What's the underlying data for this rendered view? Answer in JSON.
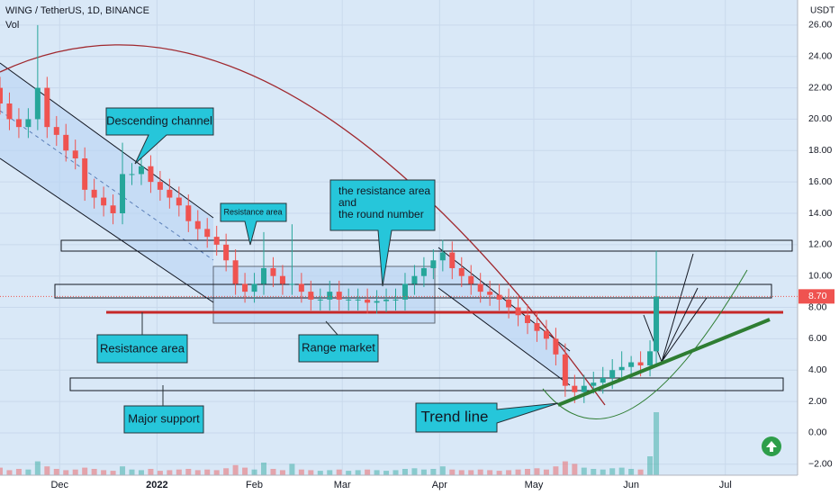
{
  "chart_data": {
    "type": "candlestick",
    "header": "WING / TetherUS, 1D, BINANCE",
    "volume_label": "Vol",
    "currency": "USDT",
    "last_price": 8.7,
    "last_price_label": "8.70",
    "up_color": "#26a69a",
    "down_color": "#ef5350",
    "xlim": [
      0,
      254
    ],
    "xticks": [
      {
        "value": 19,
        "label": "Dec"
      },
      {
        "value": 50,
        "label": "2022"
      },
      {
        "value": 81,
        "label": "Feb"
      },
      {
        "value": 109,
        "label": "Mar"
      },
      {
        "value": 140,
        "label": "Apr"
      },
      {
        "value": 170,
        "label": "May"
      },
      {
        "value": 201,
        "label": "Jun"
      },
      {
        "value": 231,
        "label": "Jul"
      }
    ],
    "ylim": [
      -2.7,
      27.6
    ],
    "yticks": [
      {
        "value": 26,
        "label": "26.00"
      },
      {
        "value": 24,
        "label": "24.00"
      },
      {
        "value": 22,
        "label": "22.00"
      },
      {
        "value": 20,
        "label": "20.00"
      },
      {
        "value": 18,
        "label": "18.00"
      },
      {
        "value": 16,
        "label": "16.00"
      },
      {
        "value": 14,
        "label": "14.00"
      },
      {
        "value": 12,
        "label": "12.00"
      },
      {
        "value": 10,
        "label": "10.00"
      },
      {
        "value": 8,
        "label": "8.00"
      },
      {
        "value": 6,
        "label": "6.00"
      },
      {
        "value": 4,
        "label": "4.00"
      },
      {
        "value": 2,
        "label": "2.00"
      },
      {
        "value": 0,
        "label": "0.00"
      },
      {
        "value": -2,
        "label": "−2.00"
      }
    ],
    "x": [
      0,
      3,
      6,
      9,
      12,
      15,
      18,
      21,
      24,
      27,
      30,
      33,
      36,
      39,
      42,
      45,
      48,
      51,
      54,
      57,
      60,
      63,
      66,
      69,
      72,
      75,
      78,
      81,
      84,
      87,
      90,
      93,
      96,
      99,
      102,
      105,
      108,
      111,
      114,
      117,
      120,
      123,
      126,
      129,
      132,
      135,
      138,
      141,
      144,
      147,
      150,
      153,
      156,
      159,
      162,
      165,
      168,
      171,
      174,
      177,
      180,
      183,
      186,
      189,
      192,
      195,
      198,
      201,
      204,
      207,
      209
    ],
    "open": [
      22,
      21,
      20,
      19.5,
      20,
      22,
      19.5,
      19,
      18,
      17.5,
      15.5,
      15,
      14.5,
      14,
      16.5,
      16.5,
      17,
      16,
      15.5,
      15,
      14.5,
      13.5,
      13,
      12.5,
      12,
      11,
      9.5,
      9,
      9.5,
      10.5,
      10,
      9.5,
      9.5,
      9,
      8.5,
      8.5,
      9,
      8.5,
      8.5,
      8.5,
      8.3,
      8.4,
      8.5,
      8.5,
      9.5,
      10,
      10.5,
      11,
      11.5,
      10.5,
      10,
      9.5,
      9,
      8.8,
      8.5,
      8,
      7.5,
      7,
      6.5,
      6,
      5,
      3,
      2.6,
      3,
      3.2,
      3.5,
      4,
      4.2,
      4.5,
      4.3,
      5.2
    ],
    "high": [
      22.7,
      21.7,
      20.7,
      20.7,
      26,
      22.7,
      20.2,
      19.7,
      18.7,
      18.2,
      16.2,
      15.7,
      15.2,
      18.5,
      17.2,
      17.7,
      17.7,
      16.7,
      16.2,
      15.7,
      15.2,
      14.2,
      13.7,
      13.2,
      12.7,
      11.7,
      10.2,
      10.2,
      12.8,
      11.2,
      10.7,
      13.3,
      10.2,
      9.7,
      9.2,
      9.7,
      9.7,
      9.2,
      9.2,
      9.2,
      9.1,
      9.2,
      9.2,
      10.2,
      10.7,
      11.2,
      11.7,
      12.3,
      12.2,
      11.2,
      10.7,
      10.2,
      9.7,
      9.5,
      9.2,
      8.7,
      8.2,
      7.7,
      7.2,
      6.7,
      5.7,
      3.7,
      3.7,
      3.9,
      4.2,
      4.7,
      5.2,
      4.9,
      5.2,
      5.9,
      11.6
    ],
    "low": [
      20.3,
      19.3,
      18.8,
      18.8,
      19.3,
      18.8,
      18.3,
      17.3,
      16.8,
      14.8,
      14.3,
      13.8,
      13.3,
      13.3,
      15.8,
      15.8,
      15.3,
      14.8,
      14.3,
      13.8,
      12.8,
      12.3,
      11.8,
      11.3,
      10.3,
      8.8,
      8.3,
      8.3,
      8.8,
      9.3,
      8.8,
      8.8,
      8.3,
      7.8,
      7.8,
      7.8,
      7.8,
      7.8,
      7.8,
      7.6,
      7.6,
      7.7,
      7.8,
      7.8,
      8.8,
      9.3,
      9.8,
      10.3,
      9.8,
      9.3,
      8.8,
      8.3,
      8.1,
      7.8,
      7.3,
      6.8,
      6.3,
      5.8,
      5.3,
      4.3,
      2.3,
      1.9,
      1.9,
      2.5,
      2.5,
      2.8,
      3.3,
      3.5,
      3.6,
      3.6,
      4.3
    ],
    "close": [
      21,
      20,
      19.5,
      20,
      22,
      19.5,
      19,
      18,
      17.5,
      15.5,
      15,
      14.5,
      14,
      16.5,
      16.5,
      17,
      16,
      15.5,
      15,
      14.5,
      13.5,
      13,
      12.5,
      12,
      11,
      9.5,
      9,
      9.5,
      10.5,
      10,
      9.5,
      9.5,
      9,
      8.5,
      8.5,
      9,
      8.5,
      8.5,
      8.5,
      8.3,
      8.4,
      8.5,
      8.5,
      9.5,
      10,
      10.5,
      11,
      11.5,
      10.5,
      10,
      9.5,
      9,
      8.8,
      8.5,
      8,
      7.5,
      7,
      6.5,
      6,
      5,
      3,
      2.6,
      3,
      3.2,
      3.5,
      4,
      4.2,
      4.5,
      4.3,
      5.2,
      8.7
    ],
    "volume": [
      12,
      8,
      10,
      9,
      22,
      14,
      10,
      8,
      9,
      12,
      10,
      8,
      7,
      14,
      9,
      8,
      10,
      7,
      8,
      9,
      10,
      8,
      9,
      8,
      11,
      16,
      12,
      9,
      20,
      10,
      8,
      18,
      9,
      8,
      7,
      8,
      9,
      7,
      8,
      9,
      8,
      7,
      8,
      10,
      11,
      9,
      10,
      14,
      9,
      8,
      8,
      9,
      8,
      7,
      8,
      9,
      10,
      11,
      9,
      14,
      22,
      18,
      12,
      10,
      9,
      11,
      12,
      10,
      9,
      30,
      100
    ],
    "annotations": {
      "descending_channel": "Descending channel",
      "resistance_small": "Resistance area",
      "round_number": [
        "the resistance area",
        "and",
        "the round number"
      ],
      "resistance_area": "Resistance area",
      "range_market": "Range market",
      "major_support": "Major support",
      "trend_line": "Trend line"
    }
  }
}
